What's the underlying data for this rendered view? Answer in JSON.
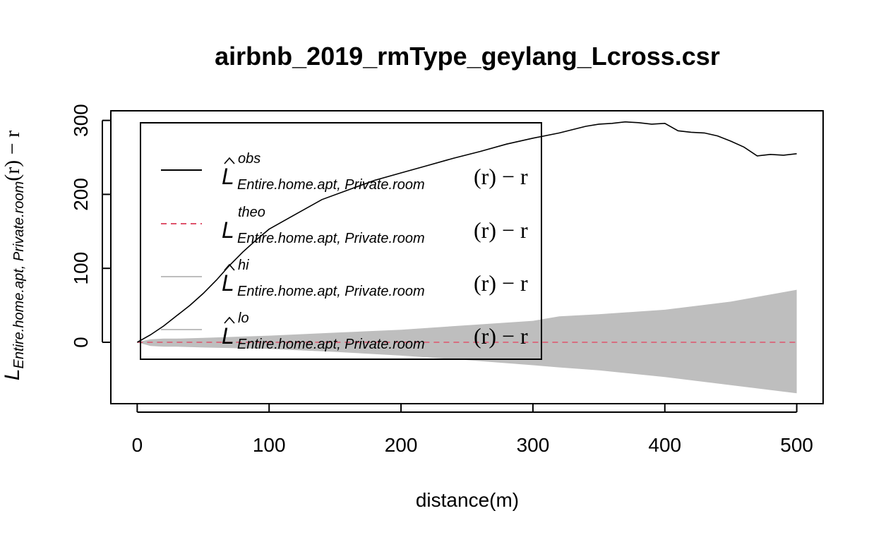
{
  "chart_data": {
    "type": "line",
    "title": "airbnb_2019_rmType_geylang_Lcross.csr",
    "xlabel": "distance(m)",
    "ylabel": {
      "symbol": "L",
      "subscript": "Entire.home.apt, Private.room",
      "suffix": "(r) − r"
    },
    "xlim": [
      -20,
      520
    ],
    "ylim": [
      -83,
      313
    ],
    "xticks": [
      0,
      100,
      200,
      300,
      400,
      500
    ],
    "yticks": [
      0,
      100,
      200,
      300
    ],
    "grid": false,
    "legend_placement": "top-left",
    "legend": [
      {
        "symbol": "L",
        "hat": true,
        "superscript": "obs",
        "subscript": "Entire.home.apt, Private.room",
        "suffix": "(r) − r",
        "line_color": "#000000",
        "dash": "none",
        "width": 2
      },
      {
        "symbol": "L",
        "hat": false,
        "superscript": "theo",
        "subscript": "Entire.home.apt, Private.room",
        "suffix": "(r) − r",
        "line_color": "#DF536B",
        "dash": "8,6",
        "width": 2
      },
      {
        "symbol": "L",
        "hat": true,
        "superscript": "hi",
        "subscript": "Entire.home.apt, Private.room",
        "suffix": "(r) − r",
        "line_color": "#BEBEBE",
        "dash": "none",
        "width": 2
      },
      {
        "symbol": "L",
        "hat": true,
        "superscript": "lo",
        "subscript": "Entire.home.apt, Private.room",
        "suffix": "(r) − r",
        "line_color": "#BEBEBE",
        "dash": "none",
        "width": 2
      }
    ],
    "colors": {
      "obs": "#000000",
      "theo": "#DF536B",
      "envelope": "#BEBEBE"
    },
    "series": [
      {
        "key": "obs",
        "x": [
          0,
          10,
          20,
          30,
          40,
          50,
          60,
          70,
          80,
          90,
          100,
          120,
          140,
          160,
          180,
          200,
          220,
          240,
          260,
          280,
          300,
          320,
          340,
          350,
          360,
          370,
          380,
          390,
          400,
          410,
          420,
          430,
          440,
          450,
          460,
          470,
          480,
          490,
          500
        ],
        "y": [
          0,
          10,
          22,
          36,
          50,
          66,
          84,
          104,
          122,
          138,
          153,
          173,
          193,
          206,
          219,
          229,
          239,
          249,
          258,
          268,
          276,
          283,
          292,
          295,
          296,
          298,
          297,
          295,
          296,
          286,
          284,
          283,
          279,
          272,
          264,
          252,
          254,
          253,
          255
        ]
      },
      {
        "key": "theo",
        "x": [
          0,
          500
        ],
        "y": [
          0,
          0
        ]
      },
      {
        "key": "hi",
        "x": [
          0,
          10,
          20,
          30,
          50,
          100,
          150,
          200,
          250,
          300,
          320,
          350,
          400,
          450,
          500
        ],
        "y": [
          0,
          4,
          5,
          5,
          6,
          9,
          13,
          17,
          23,
          29,
          35,
          38,
          44,
          55,
          71
        ]
      },
      {
        "key": "lo",
        "x": [
          0,
          10,
          20,
          30,
          50,
          100,
          150,
          200,
          250,
          300,
          320,
          350,
          400,
          450,
          500
        ],
        "y": [
          0,
          -5,
          -6,
          -6,
          -7,
          -9,
          -13,
          -18,
          -24,
          -31,
          -34,
          -38,
          -47,
          -58,
          -69
        ]
      }
    ]
  }
}
